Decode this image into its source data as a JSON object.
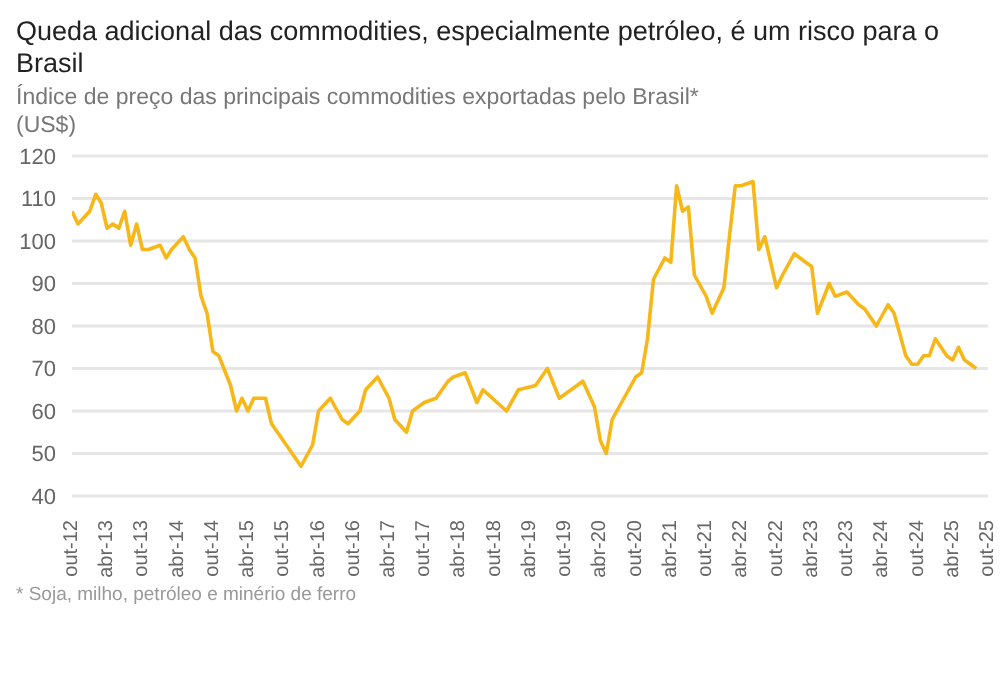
{
  "chart_data": {
    "type": "line",
    "title": "Queda adicional das commodities, especialmente petróleo, é um risco para o Brasil",
    "subtitle": "Índice de preço das principais commodities exportadas pelo Brasil*",
    "ylabel": "(US$)",
    "annotations": [
      "* Soja, milho, petróleo e minério de ferro"
    ],
    "x": [
      "2012-10",
      "2012-11",
      "2013-01",
      "2013-02",
      "2013-03",
      "2013-04",
      "2013-05",
      "2013-06",
      "2013-07",
      "2013-08",
      "2013-09",
      "2013-10",
      "2013-11",
      "2014-01",
      "2014-02",
      "2014-03",
      "2014-05",
      "2014-06",
      "2014-07",
      "2014-08",
      "2014-09",
      "2014-10",
      "2014-11",
      "2015-01",
      "2015-02",
      "2015-03",
      "2015-04",
      "2015-05",
      "2015-07",
      "2015-08",
      "2015-09",
      "2015-11",
      "2016-01",
      "2016-03",
      "2016-04",
      "2016-06",
      "2016-08",
      "2016-09",
      "2016-11",
      "2016-12",
      "2017-02",
      "2017-04",
      "2017-05",
      "2017-07",
      "2017-08",
      "2017-10",
      "2017-12",
      "2018-02",
      "2018-03",
      "2018-05",
      "2018-07",
      "2018-08",
      "2018-12",
      "2019-02",
      "2019-05",
      "2019-07",
      "2019-09",
      "2019-11",
      "2020-01",
      "2020-03",
      "2020-04",
      "2020-05",
      "2020-06",
      "2020-08",
      "2020-10",
      "2020-11",
      "2020-12",
      "2021-01",
      "2021-03",
      "2021-04",
      "2021-05",
      "2021-06",
      "2021-07",
      "2021-08",
      "2021-10",
      "2021-11",
      "2022-01",
      "2022-02",
      "2022-03",
      "2022-04",
      "2022-06",
      "2022-07",
      "2022-08",
      "2022-10",
      "2022-11",
      "2023-01",
      "2023-03",
      "2023-04",
      "2023-05",
      "2023-07",
      "2023-08",
      "2023-10",
      "2023-12",
      "2024-01",
      "2024-03",
      "2024-05",
      "2024-06",
      "2024-08",
      "2024-09",
      "2024-10",
      "2024-11",
      "2024-12",
      "2025-01",
      "2025-03",
      "2025-04",
      "2025-05",
      "2025-06",
      "2025-08"
    ],
    "series": [
      {
        "color": "#f7b718",
        "values": [
          107,
          104,
          107,
          111,
          109,
          103,
          104,
          103,
          107,
          99,
          104,
          98,
          98,
          99,
          96,
          98,
          101,
          98,
          96,
          87,
          83,
          74,
          73,
          66,
          60,
          63,
          60,
          63,
          63,
          57,
          55,
          51,
          47,
          52,
          60,
          63,
          58,
          57,
          60,
          65,
          68,
          63,
          58,
          55,
          60,
          62,
          63,
          67,
          68,
          69,
          62,
          65,
          60,
          65,
          66,
          70,
          63,
          65,
          67,
          61,
          53,
          50,
          58,
          63,
          68,
          69,
          77,
          91,
          96,
          95,
          113,
          107,
          108,
          92,
          87,
          83,
          89,
          102,
          113,
          113,
          114,
          98,
          101,
          89,
          92,
          97,
          95,
          94,
          83,
          90,
          87,
          88,
          85,
          84,
          80,
          85,
          83,
          73,
          71,
          71,
          73,
          73,
          77,
          73,
          72,
          75,
          72,
          70
        ]
      }
    ],
    "ylim": [
      40,
      120
    ],
    "yticks": [
      40,
      50,
      60,
      70,
      80,
      90,
      100,
      110,
      120
    ],
    "xlim": [
      "2012-10",
      "2025-10"
    ],
    "xticks": [
      {
        "value": "2012-10",
        "label": "out-12"
      },
      {
        "value": "2013-04",
        "label": "abr-13"
      },
      {
        "value": "2013-10",
        "label": "out-13"
      },
      {
        "value": "2014-04",
        "label": "abr-14"
      },
      {
        "value": "2014-10",
        "label": "out-14"
      },
      {
        "value": "2015-04",
        "label": "abr-15"
      },
      {
        "value": "2015-10",
        "label": "out-15"
      },
      {
        "value": "2016-04",
        "label": "abr-16"
      },
      {
        "value": "2016-10",
        "label": "out-16"
      },
      {
        "value": "2017-04",
        "label": "abr-17"
      },
      {
        "value": "2017-10",
        "label": "out-17"
      },
      {
        "value": "2018-04",
        "label": "abr-18"
      },
      {
        "value": "2018-10",
        "label": "out-18"
      },
      {
        "value": "2019-04",
        "label": "abr-19"
      },
      {
        "value": "2019-10",
        "label": "out-19"
      },
      {
        "value": "2020-04",
        "label": "abr-20"
      },
      {
        "value": "2020-10",
        "label": "out-20"
      },
      {
        "value": "2021-04",
        "label": "abr-21"
      },
      {
        "value": "2021-10",
        "label": "out-21"
      },
      {
        "value": "2022-04",
        "label": "abr-22"
      },
      {
        "value": "2022-10",
        "label": "out-22"
      },
      {
        "value": "2023-04",
        "label": "abr-23"
      },
      {
        "value": "2023-10",
        "label": "out-23"
      },
      {
        "value": "2024-04",
        "label": "abr-24"
      },
      {
        "value": "2024-10",
        "label": "out-24"
      },
      {
        "value": "2025-04",
        "label": "abr-25"
      },
      {
        "value": "2025-10",
        "label": "out-25"
      }
    ],
    "grid": "y",
    "legend": false,
    "marker": "none",
    "line_style": "solid"
  }
}
